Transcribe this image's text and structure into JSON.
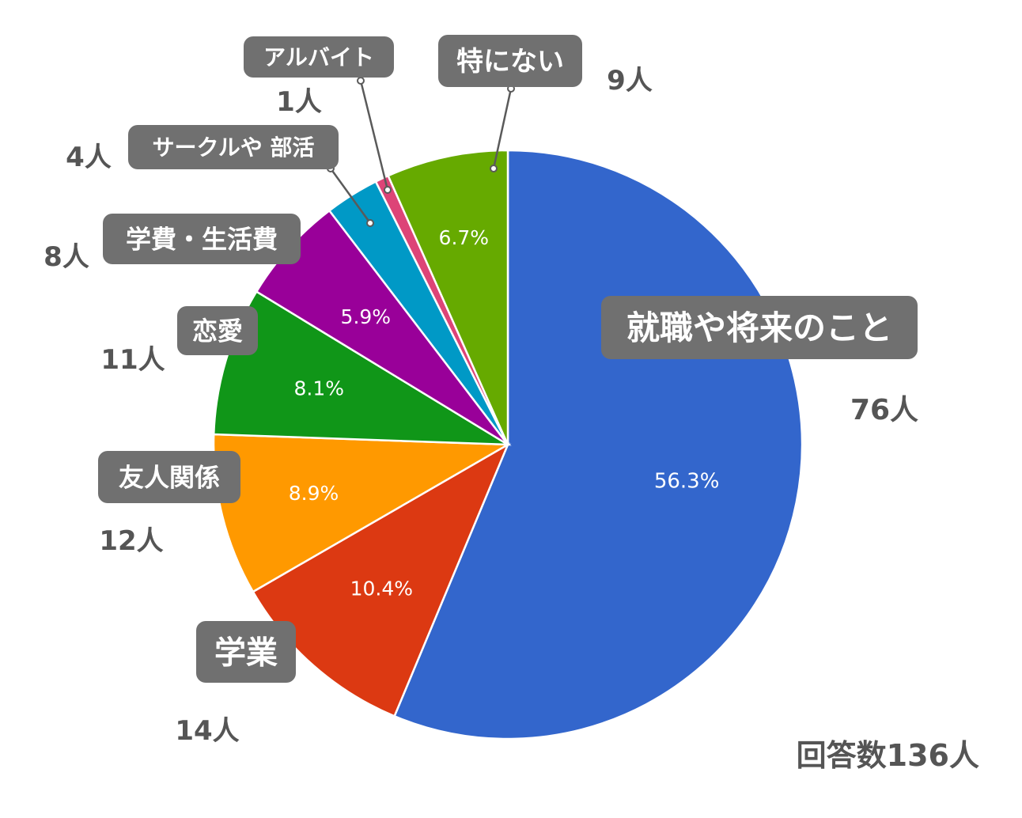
{
  "chart_data": {
    "type": "pie",
    "total_label": "回答数136人",
    "slices": [
      {
        "label": "就職や将来のこと",
        "count_label": "76人",
        "value": 76,
        "percent_label": "56.3%",
        "color": "#3366CC"
      },
      {
        "label": "学業",
        "count_label": "14人",
        "value": 14,
        "percent_label": "10.4%",
        "color": "#DC3912"
      },
      {
        "label": "友人関係",
        "count_label": "12人",
        "value": 12,
        "percent_label": "8.9%",
        "color": "#FF9900"
      },
      {
        "label": "恋愛",
        "count_label": "11人",
        "value": 11,
        "percent_label": "8.1%",
        "color": "#109618"
      },
      {
        "label": "学費・生活費",
        "count_label": "8人",
        "value": 8,
        "percent_label": "5.9%",
        "color": "#990099"
      },
      {
        "label": "サークルや 部活",
        "count_label": "4人",
        "value": 4,
        "percent_label": "",
        "color": "#0099C6"
      },
      {
        "label": "アルバイト",
        "count_label": "1人",
        "value": 1,
        "percent_label": "",
        "color": "#DD4477"
      },
      {
        "label": "特にない",
        "count_label": "9人",
        "value": 9,
        "percent_label": "6.7%",
        "color": "#66AA00"
      }
    ]
  }
}
